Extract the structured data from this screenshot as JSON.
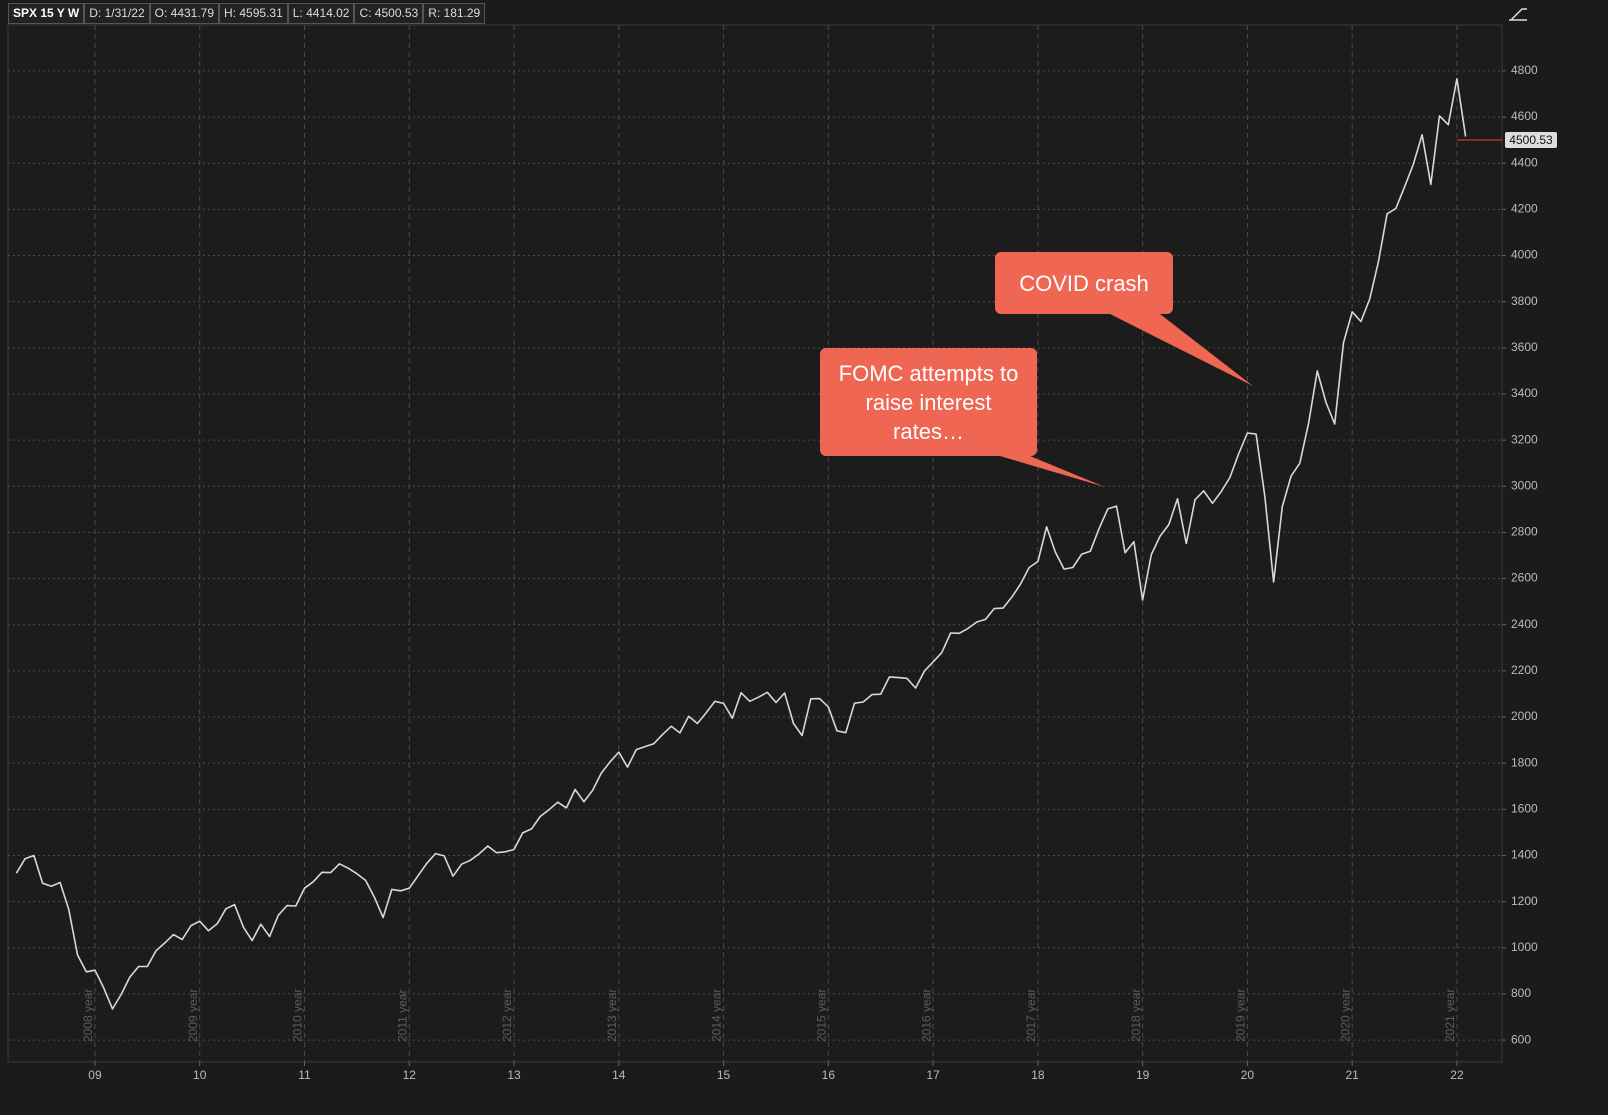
{
  "header": {
    "symbol": "SPX 15 Y W",
    "date": "D: 1/31/22",
    "open": "O: 4431.79",
    "high": "H: 4595.31",
    "low": "L: 4414.02",
    "close": "C: 4500.53",
    "range": "R: 181.29"
  },
  "chart_data": {
    "type": "line",
    "xlim": [
      2008.17,
      2022.43
    ],
    "xticks": [
      {
        "value": 2009,
        "label": "09"
      },
      {
        "value": 2010,
        "label": "10"
      },
      {
        "value": 2011,
        "label": "11"
      },
      {
        "value": 2012,
        "label": "12"
      },
      {
        "value": 2013,
        "label": "13"
      },
      {
        "value": 2014,
        "label": "14"
      },
      {
        "value": 2015,
        "label": "15"
      },
      {
        "value": 2016,
        "label": "16"
      },
      {
        "value": 2017,
        "label": "17"
      },
      {
        "value": 2018,
        "label": "18"
      },
      {
        "value": 2019,
        "label": "19"
      },
      {
        "value": 2020,
        "label": "20"
      },
      {
        "value": 2021,
        "label": "21"
      },
      {
        "value": 2022,
        "label": "22"
      }
    ],
    "period_labels": [
      "2008 year",
      "2009 year",
      "2010 year",
      "2011 year",
      "2012 year",
      "2013 year",
      "2014 year",
      "2015 year",
      "2016 year",
      "2017 year",
      "2018 year",
      "2019 year",
      "2020 year",
      "2021 year"
    ],
    "ylim": [
      505,
      4999
    ],
    "yticks": [
      600,
      800,
      1000,
      1200,
      1400,
      1600,
      1800,
      2000,
      2200,
      2400,
      2600,
      2800,
      3000,
      3200,
      3400,
      3600,
      3800,
      4000,
      4200,
      4400,
      4600,
      4800
    ],
    "grid": true,
    "last_price": 4500.53,
    "last_price_color": "#e8453c",
    "x": [
      2008.25,
      2008.333,
      2008.417,
      2008.5,
      2008.583,
      2008.667,
      2008.75,
      2008.833,
      2008.917,
      2009,
      2009.083,
      2009.167,
      2009.25,
      2009.333,
      2009.417,
      2009.5,
      2009.583,
      2009.667,
      2009.75,
      2009.833,
      2009.917,
      2010,
      2010.083,
      2010.167,
      2010.25,
      2010.333,
      2010.417,
      2010.5,
      2010.583,
      2010.667,
      2010.75,
      2010.833,
      2010.917,
      2011,
      2011.083,
      2011.167,
      2011.25,
      2011.333,
      2011.417,
      2011.5,
      2011.583,
      2011.667,
      2011.75,
      2011.833,
      2011.917,
      2012,
      2012.083,
      2012.167,
      2012.25,
      2012.333,
      2012.417,
      2012.5,
      2012.583,
      2012.667,
      2012.75,
      2012.833,
      2012.917,
      2013,
      2013.083,
      2013.167,
      2013.25,
      2013.333,
      2013.417,
      2013.5,
      2013.583,
      2013.667,
      2013.75,
      2013.833,
      2013.917,
      2014,
      2014.083,
      2014.167,
      2014.25,
      2014.333,
      2014.417,
      2014.5,
      2014.583,
      2014.667,
      2014.75,
      2014.833,
      2014.917,
      2015,
      2015.083,
      2015.167,
      2015.25,
      2015.333,
      2015.417,
      2015.5,
      2015.583,
      2015.667,
      2015.75,
      2015.833,
      2015.917,
      2016,
      2016.083,
      2016.167,
      2016.25,
      2016.333,
      2016.417,
      2016.5,
      2016.583,
      2016.667,
      2016.75,
      2016.833,
      2016.917,
      2017,
      2017.083,
      2017.167,
      2017.25,
      2017.333,
      2017.417,
      2017.5,
      2017.583,
      2017.667,
      2017.75,
      2017.833,
      2017.917,
      2018,
      2018.083,
      2018.167,
      2018.25,
      2018.333,
      2018.417,
      2018.5,
      2018.583,
      2018.667,
      2018.75,
      2018.833,
      2018.917,
      2019,
      2019.083,
      2019.167,
      2019.25,
      2019.333,
      2019.417,
      2019.5,
      2019.583,
      2019.667,
      2019.75,
      2019.833,
      2019.917,
      2020,
      2020.083,
      2020.167,
      2020.25,
      2020.333,
      2020.417,
      2020.5,
      2020.583,
      2020.667,
      2020.75,
      2020.833,
      2020.917,
      2021,
      2021.083,
      2021.167,
      2021.25,
      2021.333,
      2021.417,
      2021.5,
      2021.583,
      2021.667,
      2021.75,
      2021.833,
      2021.917,
      2022,
      2022.083
    ],
    "series": [
      {
        "name": "SPX",
        "color": "#d8d8d8",
        "values": [
          1323,
          1386,
          1400,
          1280,
          1267,
          1283,
          1166,
          969,
          896,
          903,
          826,
          735,
          798,
          873,
          919,
          919,
          987,
          1021,
          1057,
          1036,
          1096,
          1115,
          1074,
          1104,
          1169,
          1187,
          1089,
          1031,
          1102,
          1049,
          1141,
          1183,
          1181,
          1258,
          1286,
          1327,
          1326,
          1364,
          1345,
          1321,
          1292,
          1219,
          1131,
          1253,
          1247,
          1258,
          1312,
          1366,
          1408,
          1398,
          1310,
          1362,
          1379,
          1407,
          1441,
          1412,
          1416,
          1426,
          1498,
          1515,
          1569,
          1598,
          1631,
          1606,
          1686,
          1633,
          1682,
          1757,
          1806,
          1848,
          1783,
          1859,
          1872,
          1884,
          1924,
          1960,
          1931,
          2003,
          1972,
          2018,
          2068,
          2059,
          1995,
          2105,
          2068,
          2086,
          2107,
          2063,
          2104,
          1972,
          1920,
          2079,
          2080,
          2044,
          1940,
          1932,
          2060,
          2065,
          2097,
          2099,
          2174,
          2171,
          2168,
          2126,
          2199,
          2239,
          2279,
          2364,
          2363,
          2384,
          2412,
          2423,
          2470,
          2472,
          2519,
          2575,
          2648,
          2674,
          2824,
          2714,
          2641,
          2648,
          2705,
          2718,
          2816,
          2902,
          2914,
          2712,
          2760,
          2507,
          2704,
          2784,
          2834,
          2946,
          2752,
          2942,
          2980,
          2926,
          2977,
          3038,
          3141,
          3231,
          3226,
          2954,
          2585,
          2912,
          3044,
          3100,
          3271,
          3500,
          3363,
          3270,
          3622,
          3756,
          3714,
          3811,
          3973,
          4181,
          4204,
          4298,
          4395,
          4523,
          4308,
          4605,
          4567,
          4766,
          4516
        ]
      }
    ],
    "annotations": [
      {
        "text": "COVID crash"
      },
      {
        "text": "FOMC attempts to raise interest rates…"
      }
    ]
  }
}
